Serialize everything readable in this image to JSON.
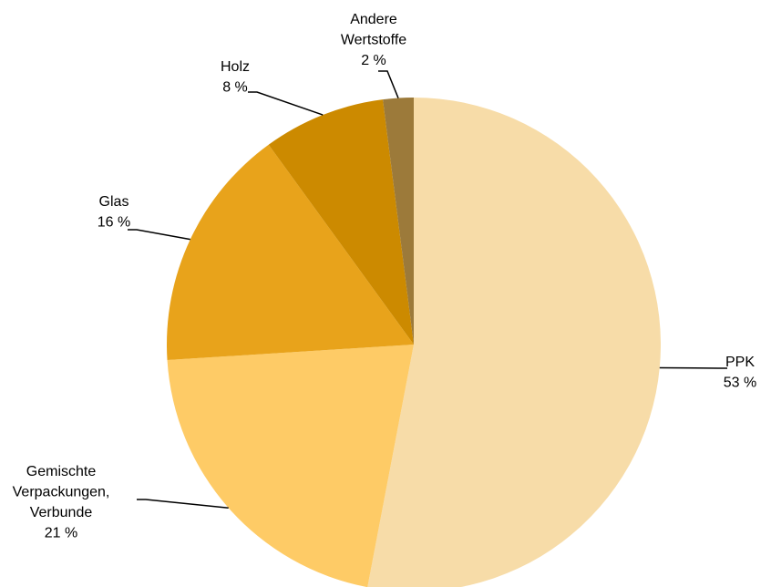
{
  "chart_data": {
    "type": "pie",
    "categories": [
      "PPK",
      "Gemischte Verpackungen, Verbunde",
      "Glas",
      "Holz",
      "Andere Wertstoffe"
    ],
    "values": [
      53,
      21,
      16,
      8,
      2
    ],
    "value_labels": [
      "53 %",
      "21 %",
      "16 %",
      "8 %",
      "2 %"
    ],
    "colors": [
      "#f7dca8",
      "#fecb66",
      "#e8a31b",
      "#cc8a00",
      "#9c7a3a"
    ]
  }
}
